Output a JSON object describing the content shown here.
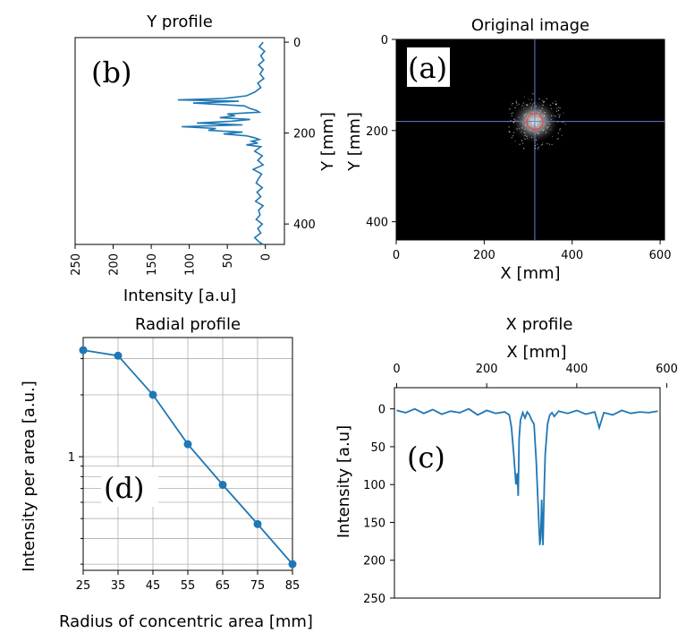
{
  "chart_data": [
    {
      "id": "b",
      "type": "line",
      "title": "Y  profile",
      "xlabel": "Intensity [a.u]",
      "ylabel": "Y [mm]",
      "panel_label": "(b)",
      "x_ticks": [
        "250",
        "200",
        "150",
        "100",
        "50",
        "0"
      ],
      "y_ticks": [
        "0",
        "200",
        "400"
      ],
      "xlim": [
        250,
        -25
      ],
      "ylim": [
        445,
        -10
      ],
      "orientation": "vertical",
      "series": [
        {
          "color": "#1f77b4",
          "y": [
            0,
            10,
            20,
            30,
            40,
            50,
            60,
            70,
            80,
            90,
            100,
            110,
            118,
            124,
            127,
            130,
            134,
            140,
            146,
            150,
            154,
            158,
            162,
            166,
            170,
            174,
            178,
            182,
            186,
            190,
            194,
            198,
            202,
            206,
            210,
            214,
            218,
            222,
            226,
            230,
            240,
            250,
            260,
            270,
            280,
            290,
            300,
            310,
            320,
            330,
            340,
            350,
            360,
            370,
            380,
            390,
            400,
            410,
            420,
            430,
            440,
            445
          ],
          "x": [
            3,
            8,
            1,
            6,
            2,
            9,
            3,
            7,
            2,
            10,
            6,
            14,
            25,
            55,
            115,
            35,
            95,
            28,
            20,
            12,
            8,
            50,
            40,
            60,
            20,
            45,
            90,
            30,
            110,
            65,
            75,
            30,
            55,
            25,
            15,
            8,
            18,
            10,
            25,
            6,
            14,
            4,
            10,
            3,
            16,
            5,
            9,
            12,
            4,
            11,
            6,
            13,
            3,
            9,
            7,
            12,
            4,
            10,
            6,
            14,
            8,
            3
          ]
        }
      ]
    },
    {
      "id": "a",
      "type": "heatmap",
      "title": "Original image",
      "xlabel": "X [mm]",
      "ylabel": "Y [mm]",
      "panel_label": "(a)",
      "x_ticks": [
        "0",
        "200",
        "400",
        "600"
      ],
      "y_ticks": [
        "0",
        "200",
        "400"
      ],
      "xlim": [
        0,
        610
      ],
      "ylim": [
        440,
        0
      ],
      "crosshair": {
        "x": 315,
        "y": 180
      },
      "circle": {
        "cx": 315,
        "cy": 180,
        "r": 18
      },
      "background": "#000000",
      "crosshair_color": "#6b7fc8",
      "circle_color": "#ff3b30"
    },
    {
      "id": "d",
      "type": "line",
      "title": "Radial profile",
      "xlabel": "Radius of concentric area [mm]",
      "ylabel": "Intensity per area [a.u.]",
      "panel_label": "(d)",
      "yscale": "log",
      "grid": true,
      "x_ticks": [
        "25",
        "35",
        "45",
        "55",
        "65",
        "75",
        "85"
      ],
      "y_ticks": [
        "1"
      ],
      "xlim": [
        25,
        85
      ],
      "ylim": [
        0.28,
        3.8
      ],
      "series": [
        {
          "color": "#1f77b4",
          "x": [
            25,
            35,
            45,
            55,
            65,
            75,
            85
          ],
          "y": [
            3.3,
            3.1,
            2.0,
            1.15,
            0.73,
            0.47,
            0.3
          ]
        }
      ]
    },
    {
      "id": "c",
      "type": "line",
      "title": "X  profile",
      "xlabel": "X [mm]",
      "ylabel": "Intensity [a.u]",
      "panel_label": "(c)",
      "x_ticks": [
        "0",
        "200",
        "400",
        "600"
      ],
      "y_ticks": [
        "0",
        "50",
        "100",
        "150",
        "200",
        "250"
      ],
      "xlim": [
        -5,
        585
      ],
      "ylim": [
        -28,
        250
      ],
      "series": [
        {
          "color": "#1f77b4",
          "x": [
            0,
            20,
            40,
            60,
            80,
            100,
            120,
            140,
            160,
            180,
            200,
            220,
            240,
            250,
            255,
            260,
            265,
            268,
            270,
            272,
            275,
            280,
            285,
            290,
            295,
            300,
            305,
            310,
            315,
            318,
            320,
            322,
            325,
            328,
            330,
            335,
            340,
            345,
            350,
            360,
            380,
            400,
            420,
            440,
            450,
            460,
            480,
            500,
            520,
            540,
            560,
            580
          ],
          "y": [
            2,
            5,
            0,
            6,
            1,
            7,
            3,
            5,
            0,
            8,
            2,
            6,
            4,
            8,
            25,
            60,
            100,
            85,
            115,
            40,
            15,
            5,
            12,
            4,
            8,
            15,
            20,
            70,
            140,
            180,
            170,
            120,
            180,
            100,
            60,
            20,
            8,
            5,
            10,
            3,
            6,
            2,
            7,
            4,
            25,
            5,
            8,
            2,
            6,
            4,
            5,
            3
          ]
        }
      ]
    }
  ]
}
